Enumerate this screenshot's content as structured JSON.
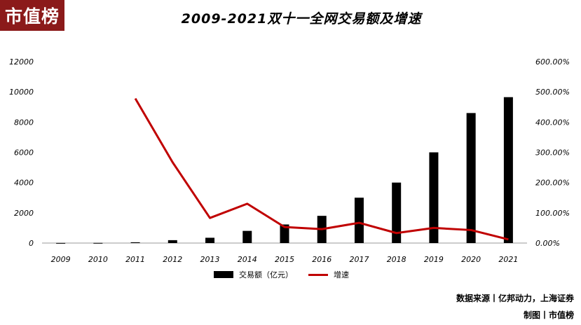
{
  "logo": {
    "text": "市值榜",
    "bg_color": "#8b1a1a"
  },
  "source_text": "数据来源丨亿邦动力，上海证券",
  "credit_text": "制图丨市值榜",
  "chart_data": {
    "type": "bar+line",
    "title": "2009-2021双十一全网交易额及增速",
    "categories": [
      "2009",
      "2010",
      "2011",
      "2012",
      "2013",
      "2014",
      "2015",
      "2016",
      "2017",
      "2018",
      "2019",
      "2020",
      "2021"
    ],
    "series": [
      {
        "name": "交易额（亿元）",
        "type": "bar",
        "axis": "left",
        "color": "#000000",
        "values": [
          5,
          9,
          52,
          191,
          350,
          805,
          1229,
          1800,
          3000,
          4000,
          6000,
          8600,
          9651
        ]
      },
      {
        "name": "增速",
        "type": "line",
        "axis": "right",
        "color": "#c00000",
        "values": [
          null,
          null,
          478,
          267,
          83,
          130,
          53,
          46,
          67,
          33,
          50,
          43,
          12
        ]
      }
    ],
    "y_left": {
      "min": 0,
      "max": 12000,
      "ticks": [
        "0",
        "2000",
        "4000",
        "6000",
        "8000",
        "10000",
        "12000"
      ]
    },
    "y_right": {
      "min": 0,
      "max": 600,
      "ticks": [
        "0.00%",
        "100.00%",
        "200.00%",
        "300.00%",
        "400.00%",
        "500.00%",
        "600.00%"
      ]
    },
    "legend_position": "bottom",
    "grid": false
  }
}
